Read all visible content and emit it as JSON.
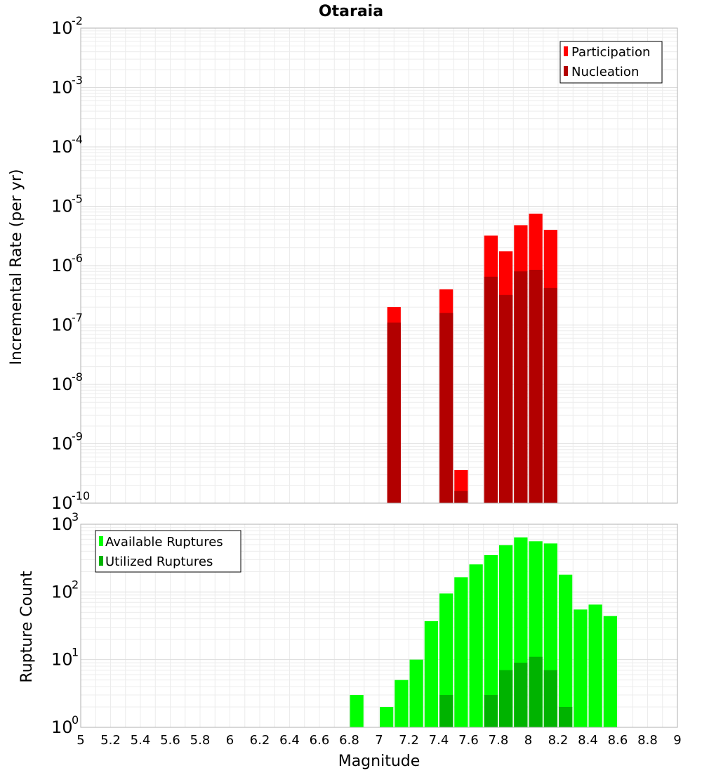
{
  "chart_data": [
    {
      "type": "bar",
      "title": "Otaraia",
      "ylabel": "Incremental Rate (per yr)",
      "yscale": "log",
      "ylim_exp": [
        -10,
        -2
      ],
      "xlim": [
        5,
        9
      ],
      "grid": true,
      "legend_position": "top-right",
      "bin_width": 0.1,
      "x": [
        7.1,
        7.45,
        7.55,
        7.75,
        7.85,
        7.95,
        8.05,
        8.15
      ],
      "series": [
        {
          "name": "Participation",
          "color": "#ff0000",
          "values": [
            2e-07,
            4e-07,
            3.6e-10,
            3.2e-06,
            1.75e-06,
            4.8e-06,
            7.5e-06,
            4e-06
          ]
        },
        {
          "name": "Nucleation",
          "color": "#b20000",
          "values": [
            1.1e-07,
            1.6e-07,
            1.6e-10,
            6.5e-07,
            3.2e-07,
            8e-07,
            8.5e-07,
            4.2e-07
          ]
        }
      ]
    },
    {
      "type": "bar",
      "xlabel": "Magnitude",
      "ylabel": "Rupture Count",
      "yscale": "log",
      "ylim_exp": [
        0,
        3
      ],
      "xlim": [
        5,
        9
      ],
      "grid": true,
      "legend_position": "top-left",
      "bin_width": 0.1,
      "x": [
        6.85,
        7.05,
        7.15,
        7.25,
        7.35,
        7.45,
        7.55,
        7.65,
        7.75,
        7.85,
        7.95,
        8.05,
        8.15,
        8.25,
        8.35,
        8.45,
        8.55
      ],
      "series": [
        {
          "name": "Available Ruptures",
          "color": "#00ff00",
          "values": [
            3,
            2,
            5,
            10,
            37,
            95,
            165,
            255,
            350,
            490,
            640,
            560,
            520,
            180,
            55,
            65,
            44
          ]
        },
        {
          "name": "Utilized Ruptures",
          "color": "#00b300",
          "values": [
            0,
            0,
            1,
            0,
            0,
            3,
            1,
            0,
            3,
            7,
            9,
            11,
            7,
            2,
            0,
            0,
            0
          ]
        }
      ]
    }
  ],
  "x_ticks": [
    "5",
    "5.2",
    "5.4",
    "5.6",
    "5.8",
    "6",
    "6.2",
    "6.4",
    "6.6",
    "6.8",
    "7",
    "7.2",
    "7.4",
    "7.6",
    "7.8",
    "8",
    "8.2",
    "8.4",
    "8.6",
    "8.8",
    "9"
  ],
  "y_ticks_top": [
    "-2",
    "-3",
    "-4",
    "-5",
    "-6",
    "-7",
    "-8",
    "-9",
    "-10"
  ],
  "y_ticks_bottom": [
    "3",
    "2",
    "1",
    "0"
  ],
  "tick_base": "10"
}
